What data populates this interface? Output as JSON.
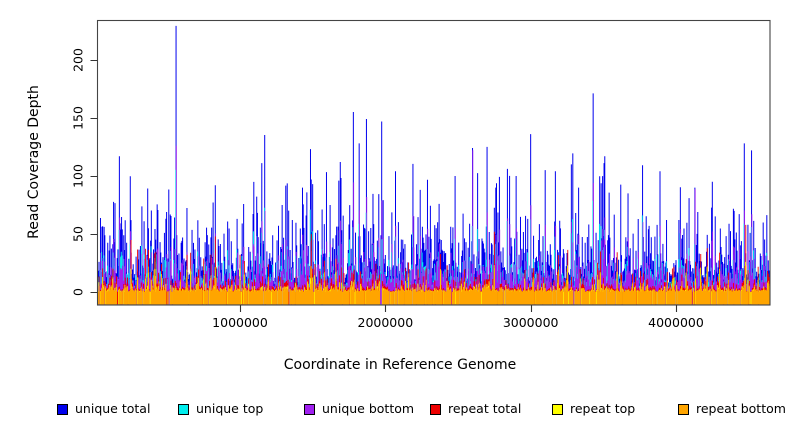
{
  "chart_data": {
    "type": "bar",
    "subtype": "vertical-coverage-spikes (R plot type='h')",
    "title": "",
    "xlabel": "Coordinate in Reference Genome",
    "ylabel": "Read Coverage Depth",
    "xlim": [
      0,
      4650000
    ],
    "ylim": [
      0,
      229
    ],
    "grid": false,
    "legend_position": "bottom",
    "frame_color": "#444444",
    "tick_color": "#333333",
    "text_color": "#000000",
    "background_color": "#ffffff",
    "xticks": [
      {
        "value": 1000000,
        "label": "1000000"
      },
      {
        "value": 2000000,
        "label": "2000000"
      },
      {
        "value": 3000000,
        "label": "3000000"
      },
      {
        "value": 4000000,
        "label": "4000000"
      }
    ],
    "yticks": [
      {
        "value": 0,
        "label": "0"
      },
      {
        "value": 50,
        "label": "50"
      },
      {
        "value": 100,
        "label": "100"
      },
      {
        "value": 150,
        "label": "150"
      },
      {
        "value": 200,
        "label": "200"
      }
    ],
    "series": [
      {
        "name": "unique total",
        "color": "#0000EE"
      },
      {
        "name": "unique top",
        "color": "#00EEEE"
      },
      {
        "name": "unique bottom",
        "color": "#A020F0"
      },
      {
        "name": "repeat total",
        "color": "#EE0000"
      },
      {
        "name": "repeat top",
        "color": "#FFFF00"
      },
      {
        "name": "repeat bottom",
        "color": "#FFA500"
      }
    ],
    "sampling": {
      "estimated_from_pixels": true,
      "seed": 1234,
      "n_points": 925,
      "x_start": 20000,
      "x_step": 5000
    },
    "notable_peaks": [
      [
        170000,
        117,
        0
      ],
      [
        250000,
        62,
        0
      ],
      [
        560000,
        229,
        0
      ],
      [
        830000,
        92,
        0
      ],
      [
        1150000,
        111,
        0
      ],
      [
        1290000,
        75,
        0
      ],
      [
        1430000,
        90,
        0
      ],
      [
        1620000,
        75,
        0
      ],
      [
        1690000,
        112,
        0
      ],
      [
        1820000,
        128,
        0
      ],
      [
        1870000,
        149,
        0
      ],
      [
        2070000,
        104,
        0
      ],
      [
        2240000,
        88,
        0
      ],
      [
        2370000,
        76,
        0
      ],
      [
        2480000,
        100,
        0
      ],
      [
        2600000,
        124,
        1
      ],
      [
        2700000,
        125,
        0
      ],
      [
        2760000,
        90,
        0
      ],
      [
        2900000,
        100,
        0
      ],
      [
        3000000,
        136,
        0
      ],
      [
        3100000,
        105,
        0
      ],
      [
        3170000,
        104,
        0
      ],
      [
        3280000,
        110,
        0
      ],
      [
        3330000,
        90,
        0
      ],
      [
        3430000,
        171,
        0
      ],
      [
        3510000,
        117,
        0
      ],
      [
        3670000,
        85,
        0
      ],
      [
        3740000,
        63,
        0
      ],
      [
        3890000,
        104,
        0
      ],
      [
        4130000,
        90,
        1
      ],
      [
        4250000,
        95,
        0
      ],
      [
        4400000,
        70,
        0
      ],
      [
        4470000,
        128,
        0
      ],
      [
        4520000,
        122,
        0
      ],
      [
        4600000,
        60,
        0
      ]
    ],
    "repeat_peaks": [
      [
        250000,
        45
      ],
      [
        830000,
        48
      ],
      [
        1490000,
        50
      ],
      [
        2750000,
        52
      ],
      [
        4480000,
        58
      ]
    ]
  }
}
